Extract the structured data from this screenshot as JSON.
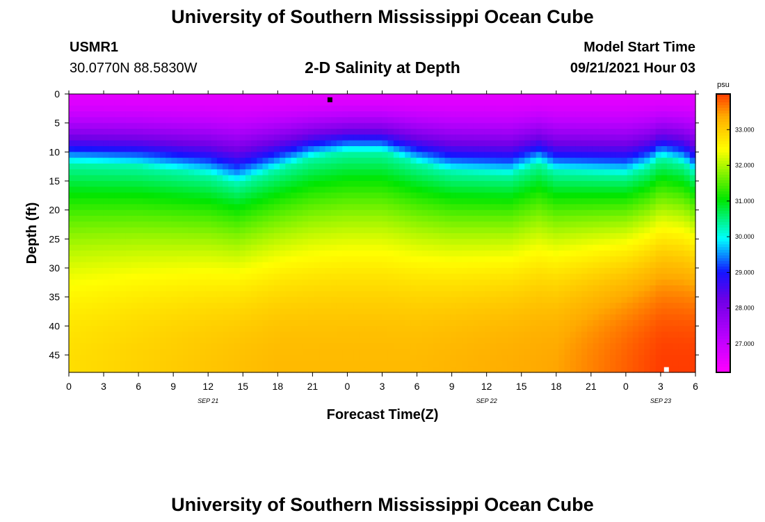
{
  "page": {
    "top_title": "University of Southern Mississippi Ocean Cube",
    "bottom_title": "University of Southern Mississippi Ocean Cube",
    "station_id": "USMR1",
    "station_coords": "30.0770N  88.5830W",
    "plot_title": "2-D Salinity at Depth",
    "model_start_label": "Model Start Time",
    "model_start_value": "09/21/2021 Hour 03"
  },
  "chart_data": {
    "type": "heatmap",
    "title": "2-D Salinity at Depth",
    "xlabel": "Forecast Time(Z)",
    "ylabel": "Depth (ft)",
    "x_ticks": [
      "0",
      "3",
      "6",
      "9",
      "12",
      "15",
      "18",
      "21",
      "0",
      "3",
      "6",
      "9",
      "12",
      "15",
      "18",
      "21",
      "0",
      "3",
      "6"
    ],
    "x_range_hours": [
      0,
      54
    ],
    "date_labels": [
      {
        "text": "SEP 21",
        "hour": 12
      },
      {
        "text": "SEP 22",
        "hour": 36
      },
      {
        "text": "SEP 23",
        "hour": 51
      }
    ],
    "y_ticks": [
      0,
      5,
      10,
      15,
      20,
      25,
      30,
      35,
      40,
      45
    ],
    "y_range": [
      0,
      48
    ],
    "y_inverted": true,
    "colorbar": {
      "unit": "psu",
      "range": [
        26.2,
        34.0
      ],
      "tick_values": [
        27,
        28,
        29,
        30,
        31,
        32,
        33
      ],
      "tick_labels": [
        "27.000",
        "28.000",
        "29.000",
        "30.000",
        "31.000",
        "32.000",
        "33.000"
      ]
    },
    "halocline_depth_ft": [
      {
        "hour": 0,
        "depth": 12
      },
      {
        "hour": 6,
        "depth": 12.5
      },
      {
        "hour": 12,
        "depth": 14
      },
      {
        "hour": 14.5,
        "depth": 15.5
      },
      {
        "hour": 18,
        "depth": 13
      },
      {
        "hour": 21,
        "depth": 11
      },
      {
        "hour": 24,
        "depth": 10
      },
      {
        "hour": 27,
        "depth": 10
      },
      {
        "hour": 30,
        "depth": 12
      },
      {
        "hour": 33,
        "depth": 13.5
      },
      {
        "hour": 38,
        "depth": 14
      },
      {
        "hour": 40.5,
        "depth": 12
      },
      {
        "hour": 42,
        "depth": 13.5
      },
      {
        "hour": 48,
        "depth": 14
      },
      {
        "hour": 50,
        "depth": 12.5
      },
      {
        "hour": 51,
        "depth": 11
      },
      {
        "hour": 53,
        "depth": 12
      },
      {
        "hour": 54,
        "depth": 14
      }
    ],
    "bottom_salinity_psu": [
      {
        "hour": 0,
        "value": 32.8
      },
      {
        "hour": 9,
        "value": 33.0
      },
      {
        "hour": 18,
        "value": 33.2
      },
      {
        "hour": 24,
        "value": 33.2
      },
      {
        "hour": 30,
        "value": 33.2
      },
      {
        "hour": 36,
        "value": 33.3
      },
      {
        "hour": 42,
        "value": 33.4
      },
      {
        "hour": 45,
        "value": 33.6
      },
      {
        "hour": 48,
        "value": 33.8
      },
      {
        "hour": 51,
        "value": 34.0
      },
      {
        "hour": 54,
        "value": 34.0
      }
    ],
    "surface_salinity_psu": 26.6,
    "markers": [
      {
        "color": "#000000",
        "hour": 22.5,
        "depth": 1
      },
      {
        "color": "#ffffff",
        "hour": 51.5,
        "depth": 48
      }
    ]
  }
}
